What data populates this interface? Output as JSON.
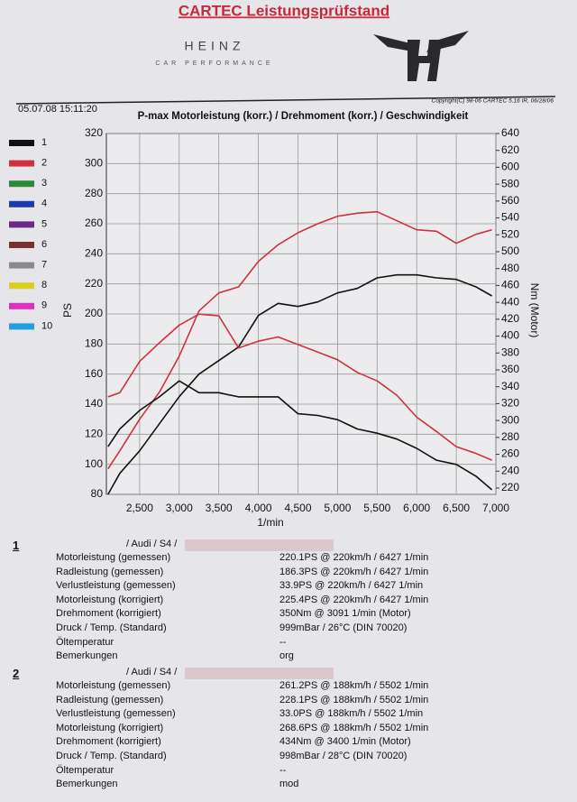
{
  "header": {
    "title": "CARTEC Leistungsprüfstand",
    "brand": "HEINZ",
    "brand_sub": "CAR PERFORMANCE",
    "timestamp": "05.07.08 15:11:20",
    "copyright": "Copyright(C) 98-06 CARTEC 5.16 IR, 06/28/06"
  },
  "chart_data": {
    "type": "line",
    "title": "P-max Motorleistung (korr.) / Drehmoment (korr.) / Geschwindigkeit",
    "x_label": "1/min",
    "y_label": "PS",
    "y2_label": "Nm (Motor)",
    "xlim": [
      2080,
      7000
    ],
    "ylim": [
      80,
      320
    ],
    "y2lim": [
      212.5,
      640
    ],
    "grid": true,
    "xticks": [
      {
        "value": 2500,
        "label": "2,500"
      },
      {
        "value": 3000,
        "label": "3,000"
      },
      {
        "value": 3500,
        "label": "3,500"
      },
      {
        "value": 4000,
        "label": "4,000"
      },
      {
        "value": 4500,
        "label": "4,500"
      },
      {
        "value": 5000,
        "label": "5,000"
      },
      {
        "value": 5500,
        "label": "5,500"
      },
      {
        "value": 6000,
        "label": "6,000"
      },
      {
        "value": 6500,
        "label": "6,500"
      },
      {
        "value": 7000,
        "label": "7,000"
      }
    ],
    "yticks": [
      80,
      100,
      120,
      140,
      160,
      180,
      200,
      220,
      240,
      260,
      280,
      300,
      320
    ],
    "y2ticks": [
      220,
      240,
      260,
      280,
      300,
      320,
      340,
      360,
      380,
      400,
      420,
      440,
      460,
      480,
      500,
      520,
      540,
      560,
      580,
      600,
      620,
      640
    ],
    "legend": [
      {
        "label": "1",
        "color": "#111111"
      },
      {
        "label": "2",
        "color": "#d03040"
      },
      {
        "label": "3",
        "color": "#2a8a3a"
      },
      {
        "label": "4",
        "color": "#1a3ab0"
      },
      {
        "label": "5",
        "color": "#6a2a8a"
      },
      {
        "label": "6",
        "color": "#7a3030"
      },
      {
        "label": "7",
        "color": "#8a8a8a"
      },
      {
        "label": "8",
        "color": "#d8d020"
      },
      {
        "label": "9",
        "color": "#e030c0"
      },
      {
        "label": "10",
        "color": "#20a0e0"
      }
    ],
    "x": [
      2100,
      2250,
      2500,
      2750,
      3000,
      3250,
      3500,
      3750,
      4000,
      4250,
      4500,
      4750,
      5000,
      5250,
      5500,
      5750,
      6000,
      6250,
      6500,
      6750,
      6950
    ],
    "series": [
      {
        "name": "1",
        "color": "#111111",
        "axis": "y",
        "values": [
          80,
          94,
          109,
          127,
          145,
          160,
          169,
          178,
          199,
          207,
          205,
          208,
          214,
          217,
          224,
          226,
          226,
          224,
          223,
          218,
          212
        ]
      },
      {
        "name": "2",
        "color": "#d03040",
        "axis": "y",
        "values": [
          97,
          109,
          130,
          148,
          172,
          202,
          214,
          218,
          235,
          246,
          254,
          260,
          265,
          267,
          268,
          262,
          256,
          255,
          247,
          253,
          256
        ]
      },
      {
        "name": "1",
        "color": "#111111",
        "axis": "y2",
        "values": [
          269,
          290,
          312,
          328,
          347,
          333,
          333,
          328,
          328,
          328,
          308,
          306,
          301,
          290,
          285,
          278,
          267,
          253,
          248,
          234,
          218
        ]
      },
      {
        "name": "2",
        "color": "#d03040",
        "axis": "y2",
        "values": [
          328,
          333,
          370,
          392,
          413,
          426,
          424,
          386,
          394,
          399,
          390,
          381,
          372,
          357,
          347,
          330,
          304,
          287,
          269,
          261,
          253
        ]
      }
    ]
  },
  "results": [
    {
      "number": "1",
      "vehicle": "/ Audi / S4 /",
      "rows": [
        [
          "Motorleistung (gemessen)",
          "220.1PS @ 220km/h / 6427 1/min"
        ],
        [
          "Radleistung (gemessen)",
          "186.3PS @ 220km/h / 6427 1/min"
        ],
        [
          "Verlustleistung (gemessen)",
          "33.9PS @ 220km/h / 6427 1/min"
        ],
        [
          "Motorleistung (korrigiert)",
          "225.4PS @ 220km/h / 6427 1/min"
        ],
        [
          "Drehmoment (korrigiert)",
          "350Nm @ 3091 1/min (Motor)"
        ],
        [
          "Druck / Temp. (Standard)",
          "999mBar / 26°C   (DIN 70020)"
        ],
        [
          "Öltemperatur",
          "--"
        ],
        [
          "Bemerkungen",
          "org"
        ]
      ]
    },
    {
      "number": "2",
      "vehicle": "/ Audi / S4 /",
      "rows": [
        [
          "Motorleistung (gemessen)",
          "261.2PS @ 188km/h / 5502 1/min"
        ],
        [
          "Radleistung (gemessen)",
          "228.1PS @ 188km/h / 5502 1/min"
        ],
        [
          "Verlustleistung (gemessen)",
          "33.0PS @ 188km/h / 5502 1/min"
        ],
        [
          "Motorleistung (korrigiert)",
          "268.6PS @ 188km/h / 5502 1/min"
        ],
        [
          "Drehmoment (korrigiert)",
          "434Nm @ 3400 1/min (Motor)"
        ],
        [
          "Druck / Temp. (Standard)",
          "998mBar / 28°C   (DIN 70020)"
        ],
        [
          "Öltemperatur",
          "--"
        ],
        [
          "Bemerkungen",
          "mod"
        ]
      ]
    }
  ]
}
